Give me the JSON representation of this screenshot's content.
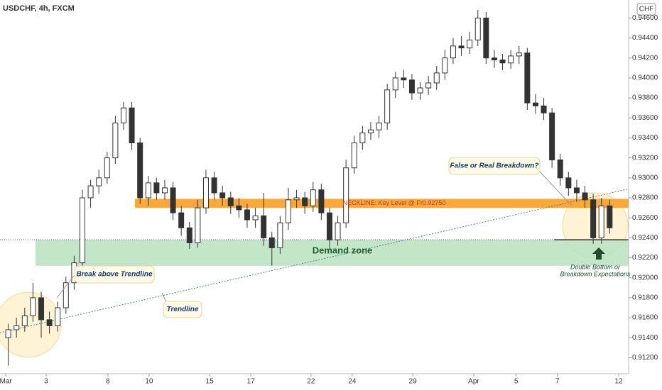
{
  "chart_data": {
    "type": "candlestick",
    "title": "USDCHF, 4h, FXCM",
    "currency": "CHF",
    "xlim": [
      0,
      152.6
    ],
    "ylim": [
      0.9104,
      0.9478
    ],
    "xticks": [
      {
        "value": 1.4,
        "label": "Mar"
      },
      {
        "value": 11.2,
        "label": "3"
      },
      {
        "value": 26.2,
        "label": "8"
      },
      {
        "value": 36.2,
        "label": "10"
      },
      {
        "value": 50.9,
        "label": "15"
      },
      {
        "value": 60.9,
        "label": "17"
      },
      {
        "value": 75.5,
        "label": "22"
      },
      {
        "value": 85.5,
        "label": "24"
      },
      {
        "value": 100.2,
        "label": "29"
      },
      {
        "value": 115,
        "label": "Apr"
      },
      {
        "value": 125.3,
        "label": "5"
      },
      {
        "value": 135.3,
        "label": "7"
      },
      {
        "value": 150.2,
        "label": "12"
      }
    ],
    "yticks": [
      {
        "value": 0.912,
        "label": "0.91200"
      },
      {
        "value": 0.914,
        "label": "0.91400"
      },
      {
        "value": 0.916,
        "label": "0.91600"
      },
      {
        "value": 0.918,
        "label": "0.91800"
      },
      {
        "value": 0.92,
        "label": "0.92000"
      },
      {
        "value": 0.922,
        "label": "0.92200"
      },
      {
        "value": 0.924,
        "label": "0.92400"
      },
      {
        "value": 0.926,
        "label": "0.92600"
      },
      {
        "value": 0.928,
        "label": "0.92800"
      },
      {
        "value": 0.93,
        "label": "0.93000"
      },
      {
        "value": 0.932,
        "label": "0.93200"
      },
      {
        "value": 0.934,
        "label": "0.93400"
      },
      {
        "value": 0.936,
        "label": "0.93600"
      },
      {
        "value": 0.938,
        "label": "0.93800"
      },
      {
        "value": 0.94,
        "label": "0.94000"
      },
      {
        "value": 0.942,
        "label": "0.94200"
      },
      {
        "value": 0.944,
        "label": "0.94400"
      },
      {
        "value": 0.946,
        "label": "0.94600"
      }
    ],
    "up_color": "#ffffff",
    "down_color": "#333333",
    "x": [
      2,
      4,
      6,
      8,
      10,
      12,
      14,
      16,
      18,
      20,
      22,
      24,
      26,
      28,
      30,
      32,
      34,
      36,
      38,
      40,
      42,
      44,
      46,
      48,
      50,
      52,
      54,
      56,
      58,
      60,
      62,
      64,
      66,
      68,
      70,
      72,
      74,
      76,
      78,
      80,
      82,
      84,
      86,
      88,
      90,
      92,
      94,
      96,
      98,
      100,
      102,
      104,
      106,
      108,
      110,
      112,
      114,
      116,
      118,
      120,
      122,
      124,
      126,
      128,
      130,
      132,
      134,
      136,
      138,
      140,
      142,
      144,
      146,
      148
    ],
    "open": [
      0.914,
      0.9148,
      0.9152,
      0.9162,
      0.918,
      0.9158,
      0.9152,
      0.917,
      0.9195,
      0.9215,
      0.928,
      0.9292,
      0.93,
      0.932,
      0.9355,
      0.937,
      0.9335,
      0.928,
      0.9295,
      0.9285,
      0.929,
      0.9265,
      0.925,
      0.9235,
      0.927,
      0.93,
      0.9285,
      0.928,
      0.9272,
      0.9268,
      0.9258,
      0.9262,
      0.924,
      0.923,
      0.9255,
      0.9278,
      0.928,
      0.9272,
      0.9288,
      0.9265,
      0.9238,
      0.9255,
      0.931,
      0.9335,
      0.9345,
      0.9348,
      0.9355,
      0.9388,
      0.94,
      0.9398,
      0.9385,
      0.939,
      0.9395,
      0.9405,
      0.942,
      0.9432,
      0.943,
      0.9438,
      0.946,
      0.942,
      0.9418,
      0.9415,
      0.9422,
      0.9425,
      0.9375,
      0.9372,
      0.9365,
      0.9318,
      0.93,
      0.929,
      0.9285,
      0.9278,
      0.924,
      0.9272
    ],
    "high": [
      0.9154,
      0.916,
      0.917,
      0.9195,
      0.9186,
      0.9166,
      0.9176,
      0.9201,
      0.9222,
      0.9288,
      0.9298,
      0.9308,
      0.9326,
      0.9362,
      0.9376,
      0.9376,
      0.934,
      0.9302,
      0.93,
      0.9298,
      0.9296,
      0.9272,
      0.9256,
      0.9278,
      0.9308,
      0.9306,
      0.9292,
      0.9286,
      0.928,
      0.9274,
      0.927,
      0.9285,
      0.9246,
      0.9262,
      0.929,
      0.9288,
      0.9286,
      0.9296,
      0.9294,
      0.927,
      0.9262,
      0.9318,
      0.9342,
      0.9352,
      0.9356,
      0.9362,
      0.9394,
      0.9406,
      0.9408,
      0.9404,
      0.9396,
      0.9402,
      0.9412,
      0.9428,
      0.944,
      0.9442,
      0.9446,
      0.9468,
      0.9466,
      0.9428,
      0.9424,
      0.9428,
      0.9432,
      0.943,
      0.9384,
      0.938,
      0.937,
      0.9324,
      0.9306,
      0.9298,
      0.9292,
      0.9284,
      0.928,
      0.9278
    ],
    "low": [
      0.9112,
      0.914,
      0.9146,
      0.9156,
      0.914,
      0.9144,
      0.9146,
      0.9164,
      0.9188,
      0.9209,
      0.927,
      0.9284,
      0.9294,
      0.9314,
      0.9348,
      0.9328,
      0.9274,
      0.9272,
      0.9278,
      0.9278,
      0.9258,
      0.9242,
      0.9229,
      0.923,
      0.9264,
      0.9278,
      0.9272,
      0.9264,
      0.926,
      0.925,
      0.925,
      0.9232,
      0.9212,
      0.9224,
      0.9248,
      0.927,
      0.9264,
      0.9266,
      0.9258,
      0.9228,
      0.9232,
      0.925,
      0.9304,
      0.9328,
      0.9338,
      0.934,
      0.9348,
      0.938,
      0.939,
      0.9378,
      0.9378,
      0.9383,
      0.9388,
      0.9398,
      0.9414,
      0.9422,
      0.9424,
      0.9432,
      0.9414,
      0.941,
      0.9408,
      0.9409,
      0.9414,
      0.9368,
      0.9364,
      0.9358,
      0.931,
      0.9292,
      0.9282,
      0.9276,
      0.927,
      0.9234,
      0.9234,
      0.9244
    ],
    "close": [
      0.9148,
      0.9152,
      0.9162,
      0.918,
      0.9158,
      0.9152,
      0.917,
      0.9195,
      0.9215,
      0.928,
      0.9292,
      0.93,
      0.932,
      0.9355,
      0.937,
      0.9335,
      0.928,
      0.9295,
      0.9285,
      0.929,
      0.9265,
      0.925,
      0.9235,
      0.927,
      0.93,
      0.9285,
      0.928,
      0.9272,
      0.9268,
      0.9258,
      0.9262,
      0.924,
      0.923,
      0.9255,
      0.9278,
      0.928,
      0.9272,
      0.9288,
      0.9265,
      0.9238,
      0.9255,
      0.931,
      0.9335,
      0.9345,
      0.9348,
      0.9355,
      0.9388,
      0.94,
      0.9398,
      0.9385,
      0.939,
      0.9395,
      0.9405,
      0.942,
      0.9432,
      0.943,
      0.9438,
      0.946,
      0.942,
      0.9418,
      0.9415,
      0.9422,
      0.9425,
      0.9375,
      0.9372,
      0.9365,
      0.9318,
      0.93,
      0.929,
      0.9285,
      0.9278,
      0.924,
      0.9272,
      0.925
    ],
    "neckline": {
      "label": "NECKLINE: Key Level @ Fr0.92750",
      "low": 0.927,
      "high": 0.9279,
      "color": "#f7a93b"
    },
    "demand_zone": {
      "label": "Demand zone",
      "low": 0.9212,
      "high": 0.9238,
      "color": "#b8e2bf"
    },
    "trendline": {
      "label": "Trendline",
      "start": 0.9145,
      "end": 0.9289
    },
    "support_level": 0.9238,
    "annotations": {
      "breakdown": "False or Real Breakdown?",
      "break": "Break above Trendline",
      "double_bottom": "Double Bottom or",
      "expectations": "Breakdown Expectations"
    }
  }
}
